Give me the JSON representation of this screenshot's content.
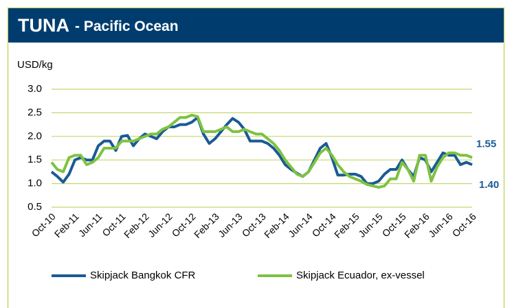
{
  "chart_data": {
    "type": "line",
    "title": "TUNA",
    "subtitle": "- Pacific Ocean",
    "y_label": "USD/kg",
    "categories": [
      "Oct-10",
      null,
      null,
      null,
      "Feb-11",
      null,
      null,
      null,
      "Jun-11",
      null,
      null,
      null,
      "Oct-11",
      null,
      null,
      null,
      "Feb-12",
      null,
      null,
      null,
      "Jun-12",
      null,
      null,
      null,
      "Oct-12",
      null,
      null,
      null,
      "Feb-13",
      null,
      null,
      null,
      "Jun-13",
      null,
      null,
      null,
      "Oct-13",
      null,
      null,
      null,
      "Feb-14",
      null,
      null,
      null,
      "Jun-14",
      null,
      null,
      null,
      "Oct-14",
      null,
      null,
      null,
      "Feb-15",
      null,
      null,
      null,
      "Jun-15",
      null,
      null,
      null,
      "Oct-15",
      null,
      null,
      null,
      "Feb-16",
      null,
      null,
      null,
      "Jun-16",
      null,
      null,
      null,
      "Oct-16"
    ],
    "series": [
      {
        "name": "Skipjack Bangkok CFR",
        "color": "#1a5a96",
        "end_label": "1.40",
        "values": [
          1.25,
          1.15,
          1.03,
          1.2,
          1.5,
          1.55,
          1.5,
          1.5,
          1.8,
          1.9,
          1.9,
          1.7,
          2.0,
          2.02,
          1.8,
          1.95,
          2.05,
          2.0,
          1.95,
          2.1,
          2.2,
          2.2,
          2.25,
          2.25,
          2.3,
          2.4,
          2.05,
          1.85,
          1.95,
          2.1,
          2.25,
          2.38,
          2.3,
          2.15,
          1.9,
          1.9,
          1.9,
          1.85,
          1.75,
          1.6,
          1.4,
          1.3,
          1.22,
          1.15,
          1.25,
          1.5,
          1.75,
          1.85,
          1.55,
          1.18,
          1.18,
          1.2,
          1.2,
          1.15,
          1.0,
          1.0,
          1.05,
          1.2,
          1.3,
          1.3,
          1.5,
          1.3,
          1.15,
          1.55,
          1.5,
          1.25,
          1.45,
          1.65,
          1.6,
          1.6,
          1.4,
          1.45,
          1.4
        ]
      },
      {
        "name": "Skipjack Ecuador, ex-vessel",
        "color": "#7dc242",
        "end_label": "1.55",
        "values": [
          1.45,
          1.3,
          1.25,
          1.55,
          1.6,
          1.6,
          1.4,
          1.45,
          1.55,
          1.75,
          1.75,
          1.75,
          1.9,
          1.9,
          1.9,
          1.95,
          2.0,
          2.05,
          2.05,
          2.15,
          2.2,
          2.3,
          2.4,
          2.4,
          2.45,
          2.42,
          2.1,
          2.1,
          2.1,
          2.15,
          2.2,
          2.1,
          2.1,
          2.15,
          2.1,
          2.05,
          2.05,
          1.95,
          1.85,
          1.7,
          1.5,
          1.35,
          1.2,
          1.15,
          1.25,
          1.45,
          1.65,
          1.75,
          1.6,
          1.4,
          1.25,
          1.15,
          1.1,
          1.05,
          0.98,
          0.95,
          0.92,
          0.95,
          1.1,
          1.1,
          1.45,
          1.3,
          1.05,
          1.6,
          1.6,
          1.05,
          1.35,
          1.55,
          1.65,
          1.65,
          1.6,
          1.6,
          1.55
        ]
      }
    ],
    "ylim": [
      0.5,
      3.0
    ],
    "yticks": [
      0.5,
      {
        "value": 1.0,
        "label": "1.0"
      },
      1.5,
      {
        "value": 2.0,
        "label": "2.0"
      },
      2.5,
      {
        "value": 3.0,
        "label": "3.0"
      }
    ],
    "grid": true,
    "legend": "bottom"
  }
}
